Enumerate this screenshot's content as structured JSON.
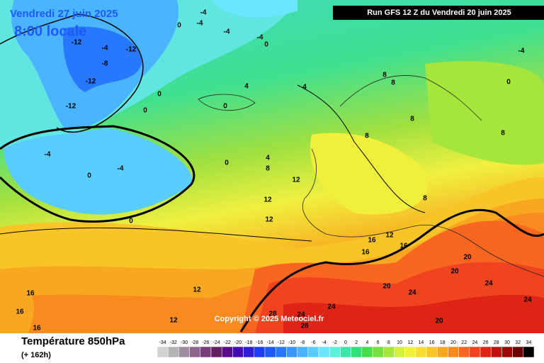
{
  "header": {
    "valid_date": "Vendredi 27 juin 2025",
    "local_time": "8:00 locale",
    "run": "Run GFS 12 Z du Vendredi 20 juin 2025"
  },
  "copyright": "Copyright © 2025 Meteociel.fr",
  "footer": {
    "title": "Température 850hPa",
    "lead": "(+ 162h)"
  },
  "scale": {
    "values": [
      -34,
      -32,
      -30,
      -28,
      -26,
      -24,
      -22,
      -20,
      -18,
      -16,
      -14,
      -12,
      -10,
      -8,
      -6,
      -4,
      -2,
      0,
      2,
      4,
      6,
      8,
      10,
      12,
      14,
      16,
      18,
      20,
      22,
      24,
      26,
      28,
      30,
      32,
      34
    ],
    "colors": [
      "#d2d2d2",
      "#b4b4b4",
      "#a08ca0",
      "#8c648c",
      "#783c78",
      "#641e64",
      "#5a0a8c",
      "#460ab4",
      "#321ed2",
      "#1e3cf0",
      "#1e5af8",
      "#2878ff",
      "#3c96ff",
      "#4ab4ff",
      "#5acdff",
      "#6ae6ff",
      "#5af0dc",
      "#3ce6aa",
      "#32e07a",
      "#46dc4a",
      "#78e03c",
      "#a6e63c",
      "#d2f03c",
      "#f0f03c",
      "#f8dc32",
      "#f8c428",
      "#f8a820",
      "#f88a20",
      "#f86620",
      "#f04420",
      "#de2414",
      "#c01010",
      "#9a0808",
      "#6a0404",
      "#000000"
    ]
  },
  "contour_labels": [
    "-4",
    "-4",
    "0",
    "-4",
    "-4",
    "0",
    "-12",
    "-4",
    "-12",
    "-8",
    "-12",
    "-12",
    "0",
    "0",
    "4",
    "4",
    "0",
    "-4",
    "-4",
    "0",
    "0",
    "4",
    "8",
    "12",
    "12",
    "12",
    "0",
    "8",
    "8",
    "8",
    "8",
    "8",
    "8",
    "12",
    "16",
    "16",
    "16",
    "20",
    "20",
    "20",
    "24",
    "24",
    "24",
    "24",
    "28",
    "28",
    "20",
    "24",
    "16",
    "16",
    "16",
    "12",
    "12",
    "0",
    "-4"
  ]
}
